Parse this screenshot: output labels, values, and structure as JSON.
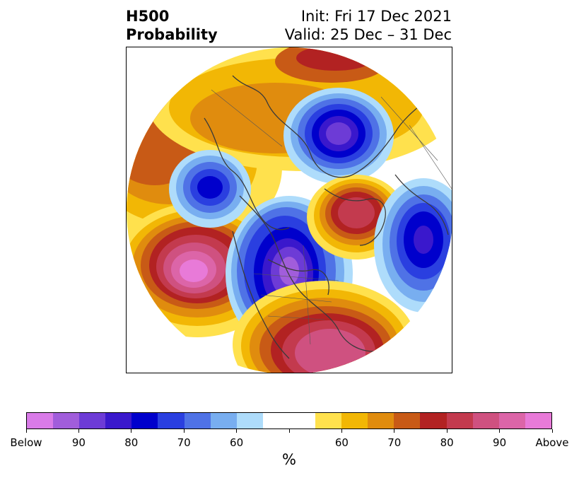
{
  "header": {
    "title_line1": "H500",
    "title_line2": "Probability",
    "init": "Init: Fri 17 Dec 2021",
    "valid": "Valid: 25 Dec – 31 Dec"
  },
  "colorbar": {
    "unit": "%",
    "colors": [
      "#d97be8",
      "#a15ddb",
      "#6d3bd6",
      "#3a18cc",
      "#0000cc",
      "#2a3fe0",
      "#4f72e6",
      "#78aef0",
      "#aedcfb",
      "#ffffff",
      "#ffffff",
      "#ffe14d",
      "#f2b705",
      "#e08c0e",
      "#c85a16",
      "#b22222",
      "#c33a4e",
      "#cf5180",
      "#dc65a8",
      "#e87ad8"
    ],
    "tick_labels": [
      "Below",
      "90",
      "80",
      "70",
      "60",
      "",
      "",
      "60",
      "70",
      "80",
      "90",
      "Above"
    ]
  },
  "colors": {
    "land_outline": "#3a3a3a",
    "below_strong": "#6d3bd6",
    "above_strong": "#dc65a8"
  }
}
